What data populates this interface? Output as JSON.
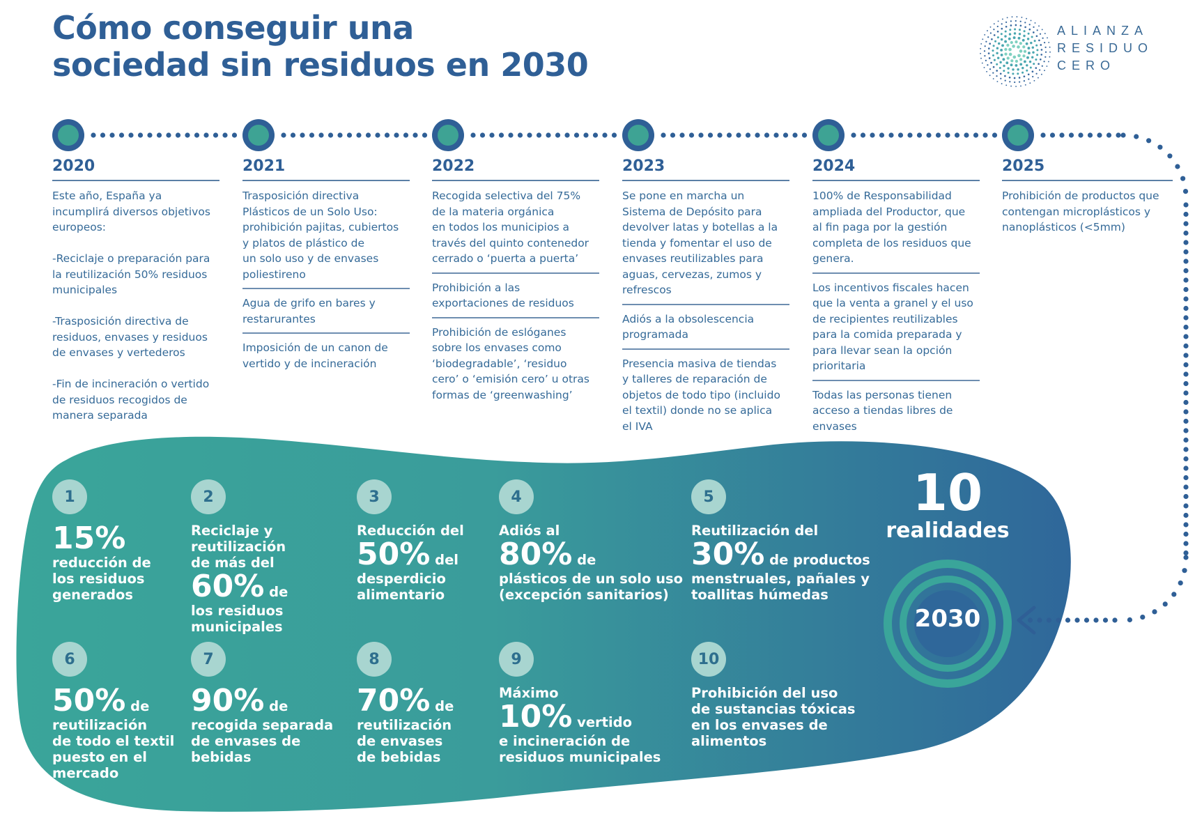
{
  "title": "Cómo conseguir una\nsociedad sin residuos en 2030",
  "logo": {
    "lines": [
      "ALIANZA",
      "RESIDUO",
      "CERO"
    ]
  },
  "colors": {
    "title": "#2f5f96",
    "teal_start": "#3aa59a",
    "teal_end": "#2f679a",
    "circle_light": "#a8d5d0",
    "dot": "#2f5f96"
  },
  "timeline": [
    {
      "year": "2020",
      "entries": [
        "Este año, España ya\nincumplirá diversos objetivos\neuropeos:\n\n-Reciclaje o preparación para\nla reutilización 50% residuos\nmunicipales\n\n-Trasposición directiva de\nresiduos, envases y residuos\nde envases y vertederos\n\n-Fin de incineración o vertido\nde residuos recogidos de\nmanera separada"
      ]
    },
    {
      "year": "2021",
      "entries": [
        "Trasposición directiva\nPlásticos de un Solo Uso:\nprohibición pajitas, cubiertos\ny platos de plástico de\nun solo uso y de envases\npoliestireno",
        "Agua de grifo en bares y\nrestarurantes",
        "Imposición de un canon de\nvertido y de incineración"
      ]
    },
    {
      "year": "2022",
      "entries": [
        "Recogida selectiva del 75%\nde la materia orgánica\nen todos los municipios a\ntravés del quinto contenedor\ncerrado o ‘puerta a puerta’",
        "Prohibición a las\nexportaciones de residuos",
        "Prohibición de eslóganes\nsobre los envases como\n‘biodegradable’, ‘residuo\ncero’ o ‘emisión cero’ u otras\nformas de ‘greenwashing’"
      ]
    },
    {
      "year": "2023",
      "entries": [
        "Se pone en marcha un\nSistema de Depósito para\ndevolver latas y botellas a la\ntienda y fomentar el uso de\nenvases reutilizables para\naguas, cervezas, zumos y\nrefrescos",
        "Adiós a la obsolescencia\nprogramada",
        "Presencia masiva de tiendas\ny talleres de reparación de\nobjetos de todo tipo (incluido\nel textil) donde no se aplica\nel IVA"
      ]
    },
    {
      "year": "2024",
      "entries": [
        "100% de Responsabilidad\nampliada del Productor, que\nal fin paga por la gestión\ncompleta de los residuos que\ngenera.",
        "Los incentivos fiscales hacen\nque la venta a granel y el uso\nde recipientes reutilizables\npara la comida preparada y\npara llevar sean la opción\nprioritaria",
        "Todas las personas tienen\nacceso a tiendas libres de\nenvases"
      ]
    },
    {
      "year": "2025",
      "entries": [
        "Prohibición de productos que\ncontengan microplásticos y\nnanoplásticos (<5mm)"
      ]
    }
  ],
  "realities": {
    "count": "10",
    "label": "realidades",
    "year": "2030",
    "items": [
      {
        "n": "1",
        "pre": "",
        "big": "15%",
        "post": "reducción de\nlos residuos\ngenerados",
        "inline": ""
      },
      {
        "n": "2",
        "pre": "Reciclaje y\nreutilización\nde más del",
        "big": "60%",
        "inline": " de",
        "post": "los residuos\nmunicipales"
      },
      {
        "n": "3",
        "pre": "Reducción del",
        "big": "50%",
        "inline": " del",
        "post": "desperdicio\nalimentario"
      },
      {
        "n": "4",
        "pre": "Adiós al",
        "big": "80%",
        "inline": " de",
        "post": "plásticos de un solo uso\n(excepción sanitarios)"
      },
      {
        "n": "5",
        "pre": "Reutilización del",
        "big": "30%",
        "inline": " de productos",
        "post": "menstruales, pañales y\ntoallitas húmedas"
      },
      {
        "n": "6",
        "pre": "",
        "big": "50%",
        "inline": " de",
        "post": "reutilización\nde todo el textil\npuesto en el\nmercado"
      },
      {
        "n": "7",
        "pre": "",
        "big": "90%",
        "inline": " de",
        "post": "recogida separada\nde envases de\nbebidas"
      },
      {
        "n": "8",
        "pre": "",
        "big": "70%",
        "inline": " de",
        "post": "reutilización\nde envases\nde bebidas"
      },
      {
        "n": "9",
        "pre": "Máximo",
        "big": "10%",
        "inline": " vertido",
        "post": "e incineración de\nresiduos municipales"
      },
      {
        "n": "10",
        "pre": "Prohibición del uso\nde sustancias tóxicas\nen los envases de\nalimentos",
        "big": "",
        "inline": "",
        "post": ""
      }
    ]
  }
}
